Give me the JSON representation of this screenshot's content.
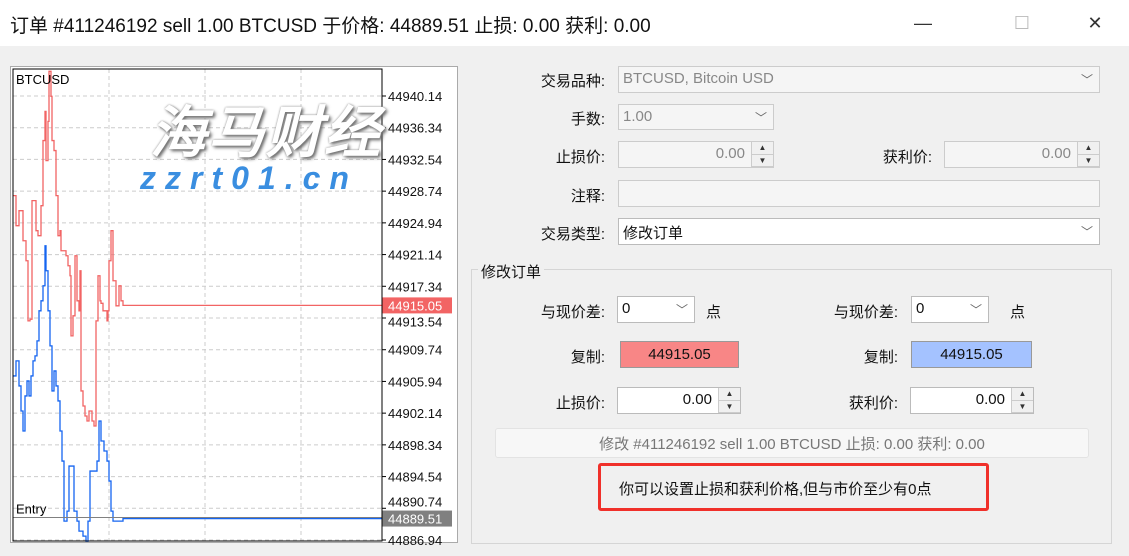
{
  "window": {
    "title": "订单 #411246192 sell 1.00 BTCUSD 于价格: 44889.51 止损: 0.00 获利: 0.00",
    "minimize": "—",
    "maximize": "☐",
    "close": "✕"
  },
  "chart": {
    "symbol": "BTCUSD",
    "entry_label": "Entry",
    "price_ticks": [
      "44940.14",
      "44936.34",
      "44932.54",
      "44928.74",
      "44924.94",
      "44921.14",
      "44917.34",
      "44913.54",
      "44909.74",
      "44905.94",
      "44902.14",
      "44898.34",
      "44894.54",
      "44890.74",
      "44886.94"
    ],
    "ask_marker": "44915.05",
    "bid_marker": "44889.51",
    "colors": {
      "ask": "#f26464",
      "bid": "#1565f0",
      "ask_marker": "#f26464",
      "bid_marker": "#808080"
    }
  },
  "chart_data": {
    "type": "line",
    "ylim": [
      44886.94,
      44943.5
    ],
    "series": [
      {
        "key": "ask",
        "points": [
          [
            0,
            44928.2
          ],
          [
            3,
            44924.6
          ],
          [
            6,
            44926.4
          ],
          [
            10,
            44922.8
          ],
          [
            13,
            44920.4
          ],
          [
            15,
            44913.2
          ],
          [
            17,
            44913.4
          ],
          [
            19,
            44927.6
          ],
          [
            23,
            44924.0
          ],
          [
            25,
            44923.4
          ],
          [
            26,
            44923.4
          ],
          [
            28,
            44927.0
          ],
          [
            30,
            44934.8
          ],
          [
            32,
            44938.3
          ],
          [
            33,
            44932.4
          ],
          [
            35,
            44937.1
          ],
          [
            36,
            44943.1
          ],
          [
            38,
            44940.1
          ],
          [
            39,
            44934.8
          ],
          [
            41,
            44933.6
          ],
          [
            43,
            44928.2
          ],
          [
            45,
            44923.4
          ],
          [
            47,
            44924.0
          ],
          [
            48,
            44921.6
          ],
          [
            51,
            44921.6
          ],
          [
            53,
            44921.0
          ],
          [
            55,
            44919.8
          ],
          [
            57,
            44918.6
          ],
          [
            58,
            44911.4
          ],
          [
            60,
            44913.8
          ],
          [
            62,
            44921.0
          ],
          [
            64,
            44915.6
          ],
          [
            66,
            44914.4
          ],
          [
            67,
            44919.2
          ],
          [
            68,
            44904.8
          ],
          [
            70,
            44903.0
          ],
          [
            72,
            44901.8
          ],
          [
            74,
            44901.2
          ],
          [
            76,
            44902.4
          ],
          [
            79,
            44901.2
          ],
          [
            81,
            44900.6
          ],
          [
            83,
            44913.2
          ],
          [
            85,
            44918.6
          ],
          [
            87,
            44915.6
          ],
          [
            88,
            44915.3
          ],
          [
            90,
            44914.4
          ],
          [
            92,
            44914.4
          ],
          [
            94,
            44913.2
          ],
          [
            95,
            44914.4
          ],
          [
            96,
            44920.4
          ],
          [
            98,
            44924.0
          ],
          [
            100,
            44918.0
          ],
          [
            103,
            44915.0
          ],
          [
            106,
            44917.4
          ],
          [
            108,
            44915.6
          ],
          [
            110,
            44915.05
          ],
          [
            369,
            44915.05
          ]
        ]
      },
      {
        "key": "bid",
        "points": [
          [
            0,
            44906.6
          ],
          [
            3,
            44908.4
          ],
          [
            6,
            44905.4
          ],
          [
            8,
            44902.4
          ],
          [
            10,
            44900.0
          ],
          [
            12,
            44904.2
          ],
          [
            14,
            44906.0
          ],
          [
            16,
            44904.2
          ],
          [
            18,
            44906.6
          ],
          [
            20,
            44908.4
          ],
          [
            22,
            44909.0
          ],
          [
            24,
            44910.8
          ],
          [
            26,
            44914.4
          ],
          [
            28,
            44915.6
          ],
          [
            30,
            44917.4
          ],
          [
            32,
            44922.2
          ],
          [
            33,
            44919.2
          ],
          [
            35,
            44914.4
          ],
          [
            37,
            44910.2
          ],
          [
            39,
            44904.8
          ],
          [
            41,
            44907.2
          ],
          [
            43,
            44905.4
          ],
          [
            45,
            44903.6
          ],
          [
            47,
            44900.0
          ],
          [
            49,
            44896.4
          ],
          [
            51,
            44889.2
          ],
          [
            54,
            44890.4
          ],
          [
            56,
            44895.8
          ],
          [
            59,
            44895.8
          ],
          [
            61,
            44890.4
          ],
          [
            64,
            44889.2
          ],
          [
            66,
            44888.0
          ],
          [
            70,
            44887.4
          ],
          [
            73,
            44886.8
          ],
          [
            75,
            44889.2
          ],
          [
            77,
            44895.2
          ],
          [
            79,
            44895.2
          ],
          [
            81,
            44895.2
          ],
          [
            84,
            44896.4
          ],
          [
            86,
            44901.2
          ],
          [
            88,
            44898.8
          ],
          [
            91,
            44897.6
          ],
          [
            94,
            44896.4
          ],
          [
            96,
            44894.0
          ],
          [
            98,
            44890.4
          ],
          [
            100,
            44889.2
          ],
          [
            110,
            44889.51
          ],
          [
            369,
            44889.51
          ]
        ]
      }
    ]
  },
  "form": {
    "symbol_label": "交易品种:",
    "symbol_value": "BTCUSD, Bitcoin USD",
    "volume_label": "手数:",
    "volume_value": "1.00",
    "sl_label": "止损价:",
    "sl_value": "0.00",
    "tp_label": "获利价:",
    "tp_value": "0.00",
    "comment_label": "注释:",
    "comment_value": "",
    "type_label": "交易类型:",
    "type_value": "修改订单"
  },
  "modify": {
    "group_title": "修改订单",
    "left": {
      "diff_label": "与现价差:",
      "diff_value": "0",
      "unit": "点",
      "copy_label": "复制:",
      "copy_value": "44915.05",
      "price_label": "止损价:",
      "price_value": "0.00",
      "color": "#f88686"
    },
    "right": {
      "diff_label": "与现价差:",
      "diff_value": "0",
      "unit": "点",
      "copy_label": "复制:",
      "copy_value": "44915.05",
      "price_label": "获利价:",
      "price_value": "0.00",
      "color": "#a4c2ff"
    },
    "submit_label": "修改 #411246192 sell 1.00 BTCUSD 止损: 0.00 获利: 0.00",
    "hint": "你可以设置止损和获利价格,但与市价至少有0点"
  },
  "watermark": {
    "logo": "海马财经",
    "url": "zzrt01.cn"
  }
}
